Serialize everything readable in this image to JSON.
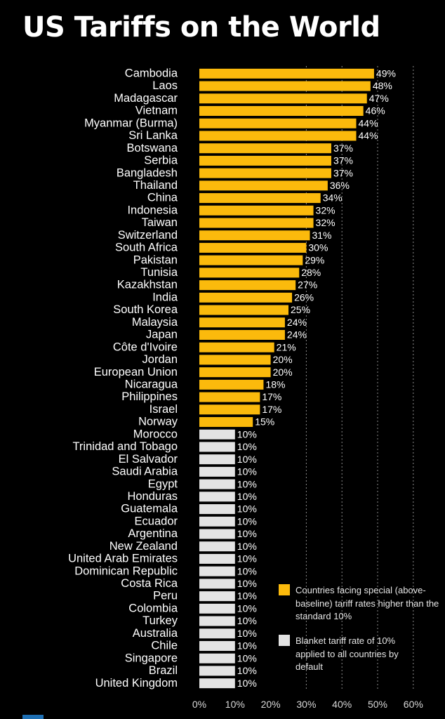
{
  "title": "US Tariffs on the World",
  "colors": {
    "special": "#FBBA0C",
    "baseline": "#E3E3E3",
    "background": "#000000",
    "grid": "#8c8c8c"
  },
  "legend": {
    "special": "Countries facing special (above-baseline) tariff rates higher than the standard 10%",
    "baseline": "Blanket tariff rate of 10% applied to all countries by default"
  },
  "chart_data": {
    "type": "bar",
    "orientation": "horizontal",
    "title": "US Tariffs on the World",
    "xlim": [
      0,
      60
    ],
    "x_ticks": [
      "0%",
      "10%",
      "20%",
      "30%",
      "40%",
      "50%",
      "60%"
    ],
    "grid": "vertical dashed",
    "legend_position": "bottom-right",
    "value_suffix": "%",
    "categories": [
      "Cambodia",
      "Laos",
      "Madagascar",
      "Vietnam",
      "Myanmar (Burma)",
      "Sri Lanka",
      "Botswana",
      "Serbia",
      "Bangladesh",
      "Thailand",
      "China",
      "Indonesia",
      "Taiwan",
      "Switzerland",
      "South Africa",
      "Pakistan",
      "Tunisia",
      "Kazakhstan",
      "India",
      "South Korea",
      "Malaysia",
      "Japan",
      "Côte d'Ivoire",
      "Jordan",
      "European Union",
      "Nicaragua",
      "Philippines",
      "Israel",
      "Norway",
      "Morocco",
      "Trinidad and Tobago",
      "El Salvador",
      "Saudi Arabia",
      "Egypt",
      "Honduras",
      "Guatemala",
      "Ecuador",
      "Argentina",
      "New Zealand",
      "United Arab Emirates",
      "Dominican Republic",
      "Costa Rica",
      "Peru",
      "Colombia",
      "Turkey",
      "Australia",
      "Chile",
      "Singapore",
      "Brazil",
      "United Kingdom"
    ],
    "values": [
      49,
      48,
      47,
      46,
      44,
      44,
      37,
      37,
      37,
      36,
      34,
      32,
      32,
      31,
      30,
      29,
      28,
      27,
      26,
      25,
      24,
      24,
      21,
      20,
      20,
      18,
      17,
      17,
      15,
      10,
      10,
      10,
      10,
      10,
      10,
      10,
      10,
      10,
      10,
      10,
      10,
      10,
      10,
      10,
      10,
      10,
      10,
      10,
      10,
      10
    ],
    "series_labels": {
      "special": "Countries facing special (above-baseline) tariff rates higher than the standard 10%",
      "baseline": "Blanket tariff rate of 10% applied to all countries by default"
    }
  }
}
